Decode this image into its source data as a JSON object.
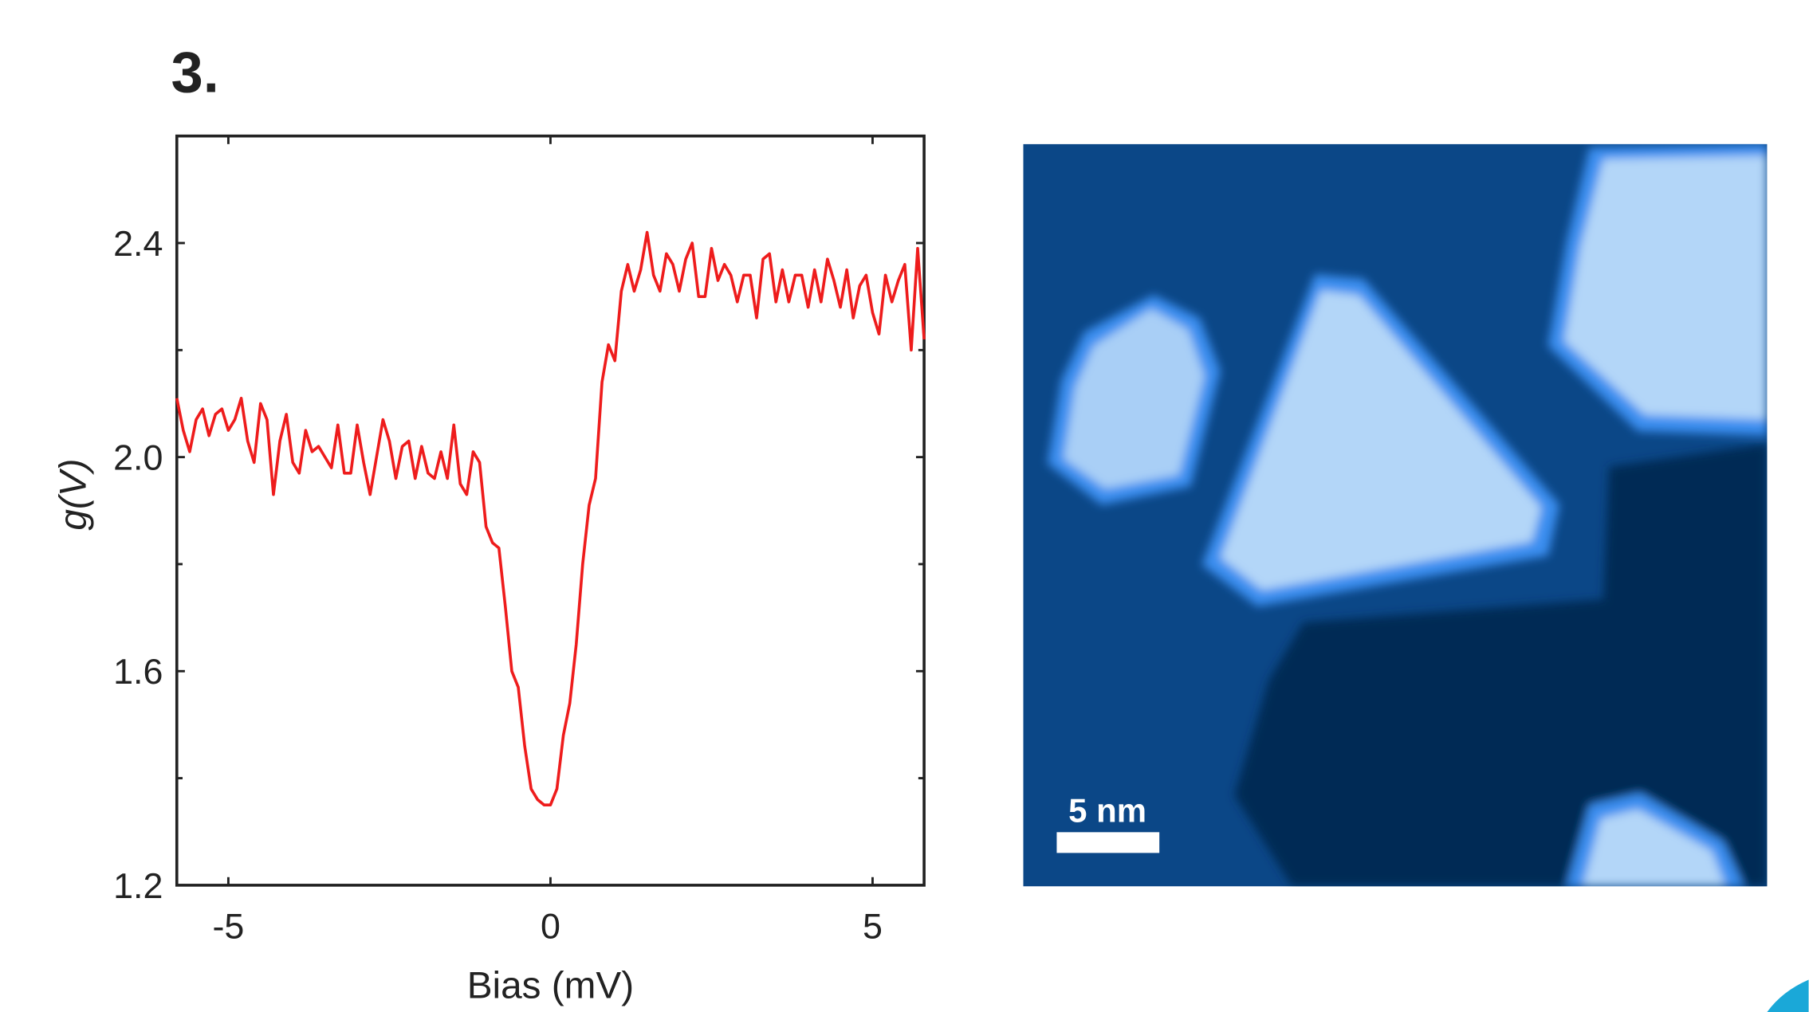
{
  "panel_label": "3.",
  "image": {
    "scale_bar_label": "5 nm"
  },
  "chart_data": {
    "type": "line",
    "xlabel": "Bias (mV)",
    "ylabel": "g(V)",
    "color": "#ee1c1c",
    "xlim": [
      -5.8,
      5.8
    ],
    "ylim": [
      1.2,
      2.6
    ],
    "xticks": [
      -5,
      0,
      5
    ],
    "yticks": [
      1.2,
      1.6,
      {
        "value": 2,
        "label": "2.0"
      },
      2.4
    ],
    "yminorticks": [
      1.4,
      1.8,
      2.2
    ],
    "x": [
      -5.8,
      -5.7,
      -5.6,
      -5.5,
      -5.4,
      -5.3,
      -5.2,
      -5.1,
      -5.0,
      -4.9,
      -4.8,
      -4.7,
      -4.6,
      -4.5,
      -4.4,
      -4.3,
      -4.2,
      -4.1,
      -4.0,
      -3.9,
      -3.8,
      -3.7,
      -3.6,
      -3.5,
      -3.4,
      -3.3,
      -3.2,
      -3.1,
      -3.0,
      -2.9,
      -2.8,
      -2.7,
      -2.6,
      -2.5,
      -2.4,
      -2.3,
      -2.2,
      -2.1,
      -2.0,
      -1.9,
      -1.8,
      -1.7,
      -1.6,
      -1.5,
      -1.4,
      -1.3,
      -1.2,
      -1.1,
      -1.0,
      -0.9,
      -0.8,
      -0.7,
      -0.6,
      -0.5,
      -0.4,
      -0.3,
      -0.2,
      -0.1,
      0.0,
      0.1,
      0.2,
      0.3,
      0.4,
      0.5,
      0.6,
      0.7,
      0.8,
      0.9,
      1.0,
      1.1,
      1.2,
      1.3,
      1.4,
      1.5,
      1.6,
      1.7,
      1.8,
      1.9,
      2.0,
      2.1,
      2.2,
      2.3,
      2.4,
      2.5,
      2.6,
      2.7,
      2.8,
      2.9,
      3.0,
      3.1,
      3.2,
      3.3,
      3.4,
      3.5,
      3.6,
      3.7,
      3.8,
      3.9,
      4.0,
      4.1,
      4.2,
      4.3,
      4.4,
      4.5,
      4.6,
      4.7,
      4.8,
      4.9,
      5.0,
      5.1,
      5.2,
      5.3,
      5.4,
      5.5,
      5.6,
      5.7,
      5.8
    ],
    "values": [
      2.11,
      2.05,
      2.01,
      2.07,
      2.09,
      2.04,
      2.08,
      2.09,
      2.05,
      2.07,
      2.11,
      2.03,
      1.99,
      2.1,
      2.07,
      1.93,
      2.03,
      2.08,
      1.99,
      1.97,
      2.05,
      2.01,
      2.02,
      2.0,
      1.98,
      2.06,
      1.97,
      1.97,
      2.06,
      1.99,
      1.93,
      2.0,
      2.07,
      2.03,
      1.96,
      2.02,
      2.03,
      1.96,
      2.02,
      1.97,
      1.96,
      2.01,
      1.96,
      2.06,
      1.95,
      1.93,
      2.01,
      1.99,
      1.87,
      1.84,
      1.83,
      1.72,
      1.6,
      1.57,
      1.46,
      1.38,
      1.36,
      1.35,
      1.35,
      1.38,
      1.48,
      1.54,
      1.65,
      1.8,
      1.91,
      1.96,
      2.14,
      2.21,
      2.18,
      2.31,
      2.36,
      2.31,
      2.35,
      2.42,
      2.34,
      2.31,
      2.38,
      2.36,
      2.31,
      2.37,
      2.4,
      2.3,
      2.3,
      2.39,
      2.33,
      2.36,
      2.34,
      2.29,
      2.34,
      2.34,
      2.26,
      2.37,
      2.38,
      2.29,
      2.35,
      2.29,
      2.34,
      2.34,
      2.28,
      2.35,
      2.29,
      2.37,
      2.33,
      2.28,
      2.35,
      2.26,
      2.32,
      2.34,
      2.27,
      2.23,
      2.34,
      2.29,
      2.33,
      2.36,
      2.2,
      2.39,
      2.22
    ]
  }
}
